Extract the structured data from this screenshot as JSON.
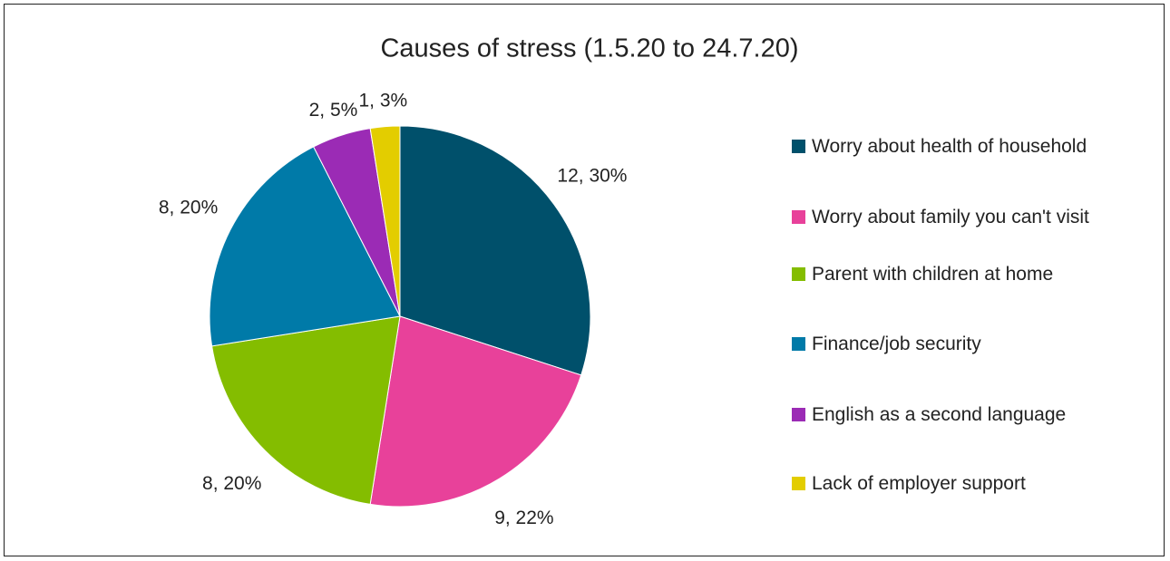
{
  "chart_data": {
    "type": "pie",
    "title": "Causes of stress (1.5.20 to 24.7.20)",
    "categories": [
      "Worry about health of household",
      "Worry about family you can't visit",
      "Parent with children at home",
      "Finance/job security",
      "English as a second language",
      "Lack of employer support"
    ],
    "values": [
      12,
      9,
      8,
      8,
      2,
      1
    ],
    "value_labels": [
      "12, 30%",
      "9, 22%",
      "8, 20%",
      "8, 20%",
      "2, 5%",
      "1, 3%"
    ],
    "colors": [
      "#00506b",
      "#e8419a",
      "#84bd00",
      "#007aa8",
      "#9b2bb5",
      "#e3cd00"
    ],
    "legend": "right"
  }
}
